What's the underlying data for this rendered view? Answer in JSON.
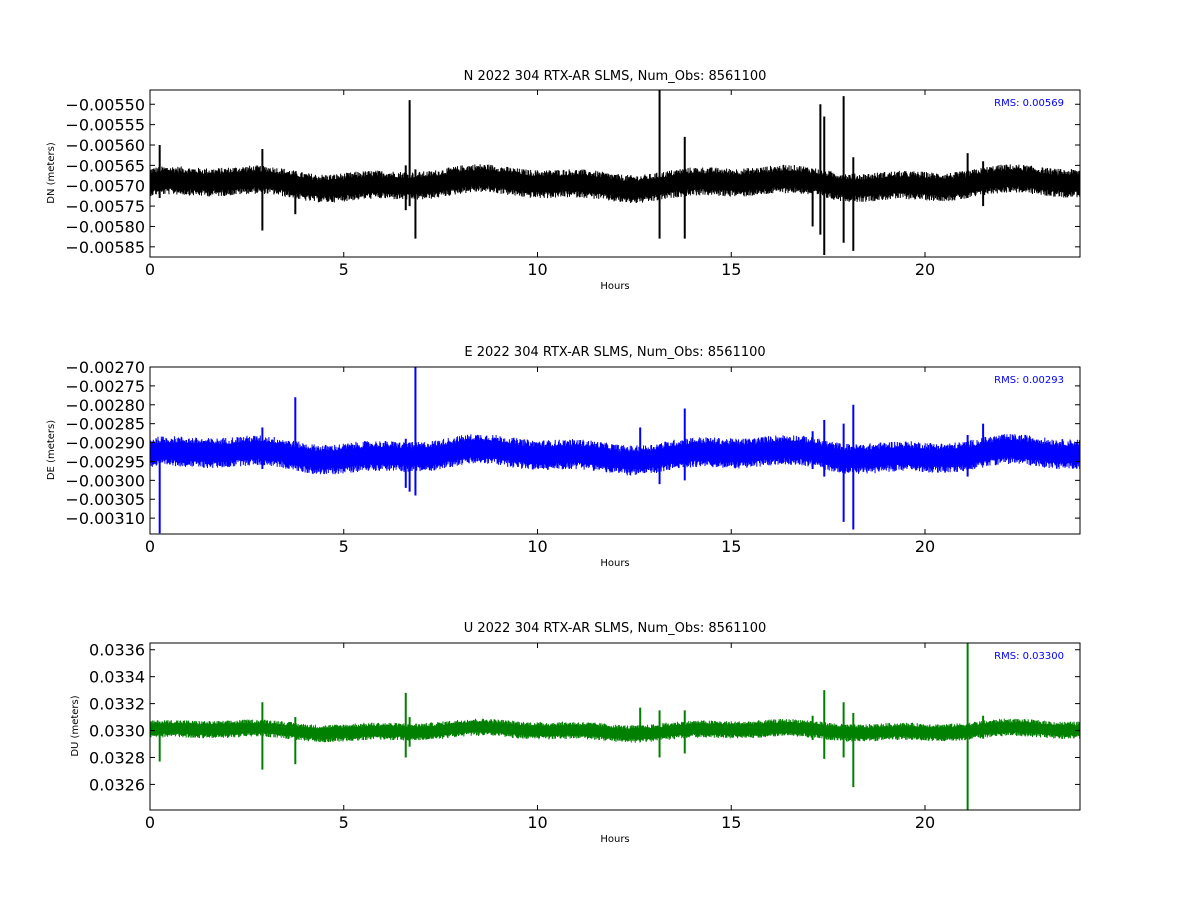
{
  "chart_data": [
    {
      "type": "line",
      "title": "N 2022 304 RTX-AR  SLMS, Num_Obs: 8561100",
      "xlabel": "Hours",
      "ylabel": "DN (meters)",
      "annotation": "RMS:  0.00569",
      "color": "#000000",
      "annotation_color": "#0000ff",
      "xlim": [
        0,
        24
      ],
      "ylim": [
        -0.005875,
        -0.005465
      ],
      "xticks": [
        0,
        5,
        10,
        15,
        20
      ],
      "yticks": [
        -0.0055,
        -0.00555,
        -0.0056,
        -0.00565,
        -0.0057,
        -0.00575,
        -0.0058,
        -0.00585
      ],
      "ytick_labels": [
        "−0.00550",
        "−0.00555",
        "−0.00560",
        "−0.00565",
        "−0.00570",
        "−0.00575",
        "−0.00580",
        "−0.00585"
      ],
      "xtick_labels": [
        "0",
        "5",
        "10",
        "15",
        "20"
      ],
      "baseline": -0.005695,
      "noise_band": [
        -0.00573,
        -0.00566
      ],
      "spikes": [
        {
          "x": 0.25,
          "low": -0.00573,
          "high": -0.0056
        },
        {
          "x": 2.9,
          "low": -0.00581,
          "high": -0.00561
        },
        {
          "x": 3.75,
          "low": -0.00577,
          "high": -0.00567
        },
        {
          "x": 6.6,
          "low": -0.00576,
          "high": -0.00565
        },
        {
          "x": 6.7,
          "low": -0.00575,
          "high": -0.00549
        },
        {
          "x": 6.85,
          "low": -0.00583,
          "high": -0.00566
        },
        {
          "x": 13.15,
          "low": -0.00583,
          "high": -0.00546
        },
        {
          "x": 13.8,
          "low": -0.00583,
          "high": -0.00558
        },
        {
          "x": 17.1,
          "low": -0.0058,
          "high": -0.00566
        },
        {
          "x": 17.3,
          "low": -0.00582,
          "high": -0.0055
        },
        {
          "x": 17.4,
          "low": -0.00587,
          "high": -0.00553
        },
        {
          "x": 17.9,
          "low": -0.00584,
          "high": -0.00548
        },
        {
          "x": 18.15,
          "low": -0.00586,
          "high": -0.00563
        },
        {
          "x": 21.1,
          "low": -0.00573,
          "high": -0.00562
        },
        {
          "x": 21.5,
          "low": -0.00575,
          "high": -0.00564
        }
      ]
    },
    {
      "type": "line",
      "title": "E 2022 304 RTX-AR  SLMS, Num_Obs: 8561100",
      "xlabel": "Hours",
      "ylabel": "DE (meters)",
      "annotation": "RMS:  0.00293",
      "color": "#0000ff",
      "annotation_color": "#0000ff",
      "xlim": [
        0,
        24
      ],
      "ylim": [
        -0.003142,
        -0.0027
      ],
      "xticks": [
        0,
        5,
        10,
        15,
        20
      ],
      "yticks": [
        -0.0027,
        -0.00275,
        -0.0028,
        -0.00285,
        -0.0029,
        -0.00295,
        -0.003,
        -0.00305,
        -0.0031
      ],
      "ytick_labels": [
        "−0.00270",
        "−0.00275",
        "−0.00280",
        "−0.00285",
        "−0.00290",
        "−0.00295",
        "−0.00300",
        "−0.00305",
        "−0.00310"
      ],
      "xtick_labels": [
        "0",
        "5",
        "10",
        "15",
        "20"
      ],
      "baseline": -0.002932,
      "noise_band": [
        -0.00297,
        -0.00289
      ],
      "spikes": [
        {
          "x": 0.25,
          "low": -0.00314,
          "high": -0.00291
        },
        {
          "x": 2.9,
          "low": -0.00297,
          "high": -0.00286
        },
        {
          "x": 3.75,
          "low": -0.00296,
          "high": -0.00278
        },
        {
          "x": 6.6,
          "low": -0.00302,
          "high": -0.00289
        },
        {
          "x": 6.7,
          "low": -0.00303,
          "high": -0.0029
        },
        {
          "x": 6.85,
          "low": -0.00304,
          "high": -0.0027
        },
        {
          "x": 12.65,
          "low": -0.00296,
          "high": -0.00286
        },
        {
          "x": 13.15,
          "low": -0.00301,
          "high": -0.00292
        },
        {
          "x": 13.8,
          "low": -0.003,
          "high": -0.00281
        },
        {
          "x": 17.1,
          "low": -0.00297,
          "high": -0.00287
        },
        {
          "x": 17.4,
          "low": -0.00299,
          "high": -0.00284
        },
        {
          "x": 17.9,
          "low": -0.00311,
          "high": -0.00285
        },
        {
          "x": 18.15,
          "low": -0.00313,
          "high": -0.0028
        },
        {
          "x": 21.1,
          "low": -0.00299,
          "high": -0.00288
        },
        {
          "x": 21.5,
          "low": -0.00296,
          "high": -0.00285
        }
      ]
    },
    {
      "type": "line",
      "title": "U 2022 304 RTX-AR  SLMS, Num_Obs: 8561100",
      "xlabel": "Hours",
      "ylabel": "DU (meters)",
      "annotation": "RMS:  0.03300",
      "color": "#008000",
      "annotation_color": "#0000ff",
      "xlim": [
        0,
        24
      ],
      "ylim": [
        0.03241,
        0.03365
      ],
      "xticks": [
        0,
        5,
        10,
        15,
        20
      ],
      "yticks": [
        0.0326,
        0.0328,
        0.033,
        0.0332,
        0.0334,
        0.0336
      ],
      "ytick_labels": [
        "0.0326",
        "0.0328",
        "0.0330",
        "0.0332",
        "0.0334",
        "0.0336"
      ],
      "xtick_labels": [
        "0",
        "5",
        "10",
        "15",
        "20"
      ],
      "baseline": 0.033,
      "noise_band": [
        0.03294,
        0.03307
      ],
      "spikes": [
        {
          "x": 0.25,
          "low": 0.03277,
          "high": 0.03306
        },
        {
          "x": 2.9,
          "low": 0.03271,
          "high": 0.03321
        },
        {
          "x": 3.75,
          "low": 0.03275,
          "high": 0.0331
        },
        {
          "x": 6.6,
          "low": 0.0328,
          "high": 0.03328
        },
        {
          "x": 6.7,
          "low": 0.03288,
          "high": 0.0331
        },
        {
          "x": 12.65,
          "low": 0.03294,
          "high": 0.03317
        },
        {
          "x": 13.15,
          "low": 0.0328,
          "high": 0.03315
        },
        {
          "x": 13.8,
          "low": 0.03283,
          "high": 0.03315
        },
        {
          "x": 17.1,
          "low": 0.03293,
          "high": 0.03311
        },
        {
          "x": 17.4,
          "low": 0.03279,
          "high": 0.0333
        },
        {
          "x": 17.9,
          "low": 0.0328,
          "high": 0.03321
        },
        {
          "x": 18.15,
          "low": 0.03258,
          "high": 0.03313
        },
        {
          "x": 21.1,
          "low": 0.03241,
          "high": 0.03365
        },
        {
          "x": 21.5,
          "low": 0.03294,
          "high": 0.03311
        }
      ]
    }
  ]
}
